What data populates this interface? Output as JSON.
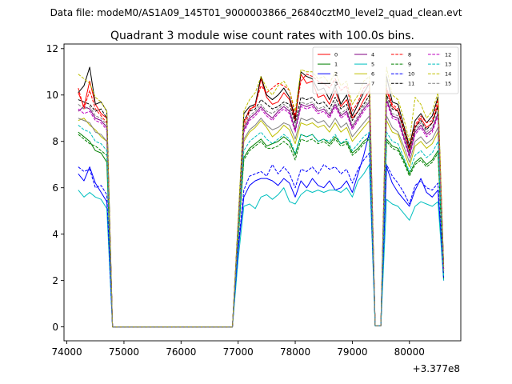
{
  "figure": {
    "suptitle": "Data file: modeM0/AS1A09_145T01_9000003866_26840cztM0_level2_quad_clean.evt",
    "title": "Quadrant 3 module wise count rates with 100.0s bins."
  },
  "chart_data": {
    "type": "line",
    "title": "Quadrant 3 module wise count rates with 100.0s bins.",
    "xlabel": "",
    "ylabel": "",
    "x_offset_label": "+3.377e8",
    "xlim": [
      73950,
      80900
    ],
    "ylim": [
      -0.6,
      12.2
    ],
    "xticks": [
      74000,
      75000,
      76000,
      77000,
      78000,
      79000,
      80000
    ],
    "yticks": [
      0,
      2,
      4,
      6,
      8,
      10,
      12
    ],
    "grid": false,
    "legend_position": "top-right",
    "legend_columns": 4,
    "x": [
      74200,
      74300,
      74400,
      74500,
      74600,
      74700,
      74800,
      76900,
      77000,
      77100,
      77200,
      77300,
      77400,
      77500,
      77600,
      77700,
      77800,
      77900,
      78000,
      78100,
      78200,
      78300,
      78400,
      78500,
      78600,
      78700,
      78800,
      78900,
      79000,
      79100,
      79200,
      79300,
      79400,
      79500,
      79600,
      79700,
      79800,
      79900,
      80000,
      80100,
      80200,
      80300,
      80400,
      80500,
      80600
    ],
    "series": [
      {
        "name": "0",
        "color": "#ff0000",
        "dash": "solid",
        "values": [
          10.1,
          9.5,
          10.6,
          9.6,
          9.2,
          9.0,
          0,
          0,
          4.4,
          8.8,
          9.4,
          9.5,
          10.7,
          9.9,
          9.6,
          9.7,
          10.1,
          9.8,
          8.9,
          10.9,
          10.5,
          10.6,
          9.9,
          10.0,
          9.6,
          10.2,
          9.5,
          9.8,
          9.0,
          9.3,
          9.8,
          10.2,
          0.05,
          0.05,
          10.2,
          9.5,
          9.3,
          8.5,
          7.6,
          8.6,
          9.0,
          8.6,
          8.8,
          9.6,
          2.5
        ]
      },
      {
        "name": "1",
        "color": "#008000",
        "dash": "solid",
        "values": [
          8.4,
          8.2,
          8.0,
          7.6,
          7.5,
          7.1,
          0,
          0,
          3.8,
          7.3,
          7.7,
          7.9,
          8.1,
          7.8,
          7.9,
          8.0,
          8.2,
          8.0,
          7.4,
          8.3,
          8.2,
          8.3,
          8.0,
          8.1,
          7.9,
          8.2,
          7.9,
          8.0,
          7.5,
          7.7,
          8.0,
          8.2,
          0.05,
          0.05,
          8.1,
          7.8,
          7.7,
          7.2,
          6.6,
          7.1,
          7.3,
          7.0,
          7.2,
          7.6,
          2.1
        ]
      },
      {
        "name": "2",
        "color": "#0000ff",
        "dash": "solid",
        "values": [
          6.6,
          6.3,
          6.9,
          6.2,
          5.8,
          5.4,
          0,
          0,
          3.3,
          5.6,
          6.1,
          6.3,
          6.4,
          6.4,
          6.3,
          6.1,
          6.4,
          6.2,
          5.6,
          6.3,
          6.0,
          6.4,
          6.1,
          6.0,
          6.3,
          5.9,
          6.0,
          6.3,
          5.8,
          6.6,
          7.4,
          8.4,
          0.05,
          0.05,
          6.9,
          6.2,
          5.8,
          5.5,
          5.2,
          5.9,
          6.4,
          5.8,
          5.6,
          5.9,
          2.0
        ]
      },
      {
        "name": "3",
        "color": "#000000",
        "dash": "solid",
        "values": [
          10.1,
          10.4,
          11.2,
          9.6,
          9.7,
          9.3,
          0,
          0,
          4.5,
          9.2,
          9.5,
          9.6,
          10.8,
          10.0,
          9.8,
          10.0,
          10.3,
          9.9,
          9.0,
          11.0,
          10.8,
          10.7,
          10.2,
          10.3,
          9.8,
          10.4,
          9.6,
          10.0,
          9.1,
          9.6,
          10.1,
          10.5,
          0.05,
          0.05,
          10.8,
          9.7,
          9.6,
          8.7,
          7.8,
          8.9,
          9.2,
          8.8,
          9.1,
          9.9,
          2.6
        ]
      },
      {
        "name": "4",
        "color": "#800080",
        "dash": "solid",
        "values": [
          9.3,
          9.5,
          9.4,
          9.0,
          8.9,
          8.6,
          0,
          0,
          4.2,
          8.5,
          9.0,
          9.2,
          9.5,
          9.2,
          9.0,
          9.3,
          9.5,
          9.3,
          8.5,
          9.6,
          9.5,
          9.6,
          9.3,
          9.4,
          9.1,
          9.6,
          9.1,
          9.3,
          8.6,
          9.0,
          9.4,
          9.7,
          0.05,
          0.05,
          9.8,
          9.1,
          9.0,
          8.2,
          7.4,
          8.4,
          8.7,
          8.3,
          8.5,
          9.2,
          2.4
        ]
      },
      {
        "name": "5",
        "color": "#00bfbf",
        "dash": "solid",
        "values": [
          5.9,
          5.6,
          5.8,
          5.6,
          5.5,
          5.1,
          0,
          0,
          2.9,
          5.2,
          5.3,
          5.1,
          5.6,
          5.7,
          5.5,
          5.7,
          6.0,
          5.4,
          5.3,
          5.7,
          5.9,
          5.8,
          5.9,
          5.8,
          5.9,
          5.9,
          5.8,
          6.0,
          5.6,
          6.3,
          6.6,
          7.0,
          0.05,
          0.05,
          5.5,
          5.3,
          5.2,
          4.9,
          4.6,
          5.2,
          5.4,
          5.3,
          5.2,
          5.4,
          2.0
        ]
      },
      {
        "name": "6",
        "color": "#bfbf00",
        "dash": "solid",
        "values": [
          8.9,
          9.0,
          8.7,
          8.5,
          8.2,
          8.0,
          0,
          0,
          4.0,
          8.0,
          8.4,
          8.6,
          8.9,
          8.6,
          8.2,
          8.4,
          8.7,
          8.5,
          7.9,
          8.8,
          8.7,
          8.8,
          8.6,
          8.7,
          8.4,
          8.8,
          8.4,
          8.6,
          8.0,
          8.3,
          8.6,
          8.9,
          0.05,
          0.05,
          8.9,
          8.4,
          8.3,
          7.6,
          6.9,
          7.8,
          8.0,
          7.7,
          7.9,
          8.4,
          2.3
        ]
      },
      {
        "name": "7",
        "color": "#808080",
        "dash": "solid",
        "values": [
          9.0,
          8.9,
          8.8,
          8.4,
          8.3,
          8.0,
          0,
          0,
          4.1,
          8.1,
          8.5,
          8.7,
          9.0,
          8.7,
          8.5,
          8.6,
          8.8,
          8.7,
          8.1,
          9.0,
          8.9,
          9.0,
          8.8,
          8.9,
          8.6,
          9.0,
          8.6,
          8.8,
          8.2,
          8.5,
          8.8,
          9.1,
          0.05,
          0.05,
          9.1,
          8.6,
          8.4,
          7.8,
          7.1,
          8.0,
          8.2,
          7.9,
          8.1,
          8.6,
          2.3
        ]
      },
      {
        "name": "8",
        "color": "#ff0000",
        "dash": "dashed",
        "values": [
          10.3,
          9.4,
          10.2,
          9.4,
          9.1,
          8.8,
          0,
          0,
          4.3,
          8.6,
          9.3,
          9.6,
          10.4,
          10.1,
          10.3,
          10.5,
          10.4,
          10.2,
          9.1,
          10.6,
          10.9,
          10.8,
          10.6,
          10.5,
          10.3,
          10.7,
          10.2,
          10.4,
          9.3,
          9.7,
          10.3,
          10.5,
          0.05,
          0.05,
          10.3,
          9.6,
          9.4,
          8.6,
          7.7,
          8.7,
          9.1,
          8.8,
          8.9,
          9.8,
          2.5
        ]
      },
      {
        "name": "9",
        "color": "#008000",
        "dash": "dashed",
        "values": [
          8.3,
          8.1,
          7.9,
          7.8,
          7.6,
          7.4,
          0,
          0,
          3.7,
          7.2,
          7.6,
          7.8,
          8.0,
          7.7,
          7.7,
          7.8,
          8.0,
          7.8,
          7.2,
          8.1,
          8.0,
          8.1,
          7.9,
          8.0,
          7.8,
          8.1,
          7.8,
          7.9,
          7.4,
          7.6,
          7.9,
          8.1,
          0.05,
          0.05,
          8.0,
          7.7,
          7.6,
          7.1,
          6.5,
          7.0,
          7.2,
          6.9,
          7.1,
          7.5,
          2.1
        ]
      },
      {
        "name": "10",
        "color": "#0000ff",
        "dash": "dashed",
        "values": [
          6.9,
          6.7,
          6.8,
          6.0,
          6.1,
          5.7,
          0,
          0,
          3.4,
          5.9,
          6.5,
          6.6,
          6.7,
          6.5,
          7.0,
          6.6,
          6.9,
          6.6,
          6.0,
          6.8,
          6.7,
          6.9,
          6.6,
          7.0,
          6.8,
          6.9,
          6.6,
          6.8,
          6.2,
          6.8,
          7.2,
          7.5,
          0.05,
          0.05,
          7.0,
          6.5,
          6.2,
          5.8,
          5.3,
          6.1,
          6.3,
          6.0,
          5.9,
          6.2,
          2.1
        ]
      },
      {
        "name": "11",
        "color": "#000000",
        "dash": "dashed",
        "values": [
          9.8,
          9.7,
          9.6,
          9.3,
          9.4,
          9.0,
          0,
          0,
          4.4,
          8.9,
          9.3,
          9.4,
          9.8,
          9.6,
          9.4,
          9.5,
          9.7,
          9.6,
          8.8,
          9.9,
          9.8,
          9.9,
          9.6,
          9.7,
          9.4,
          9.9,
          9.4,
          9.6,
          8.9,
          9.3,
          9.6,
          10.0,
          0.05,
          0.05,
          10.0,
          9.4,
          9.3,
          8.5,
          7.6,
          8.6,
          8.9,
          8.5,
          8.8,
          9.5,
          2.5
        ]
      },
      {
        "name": "12",
        "color": "#bf00bf",
        "dash": "dashed",
        "values": [
          9.4,
          9.2,
          9.3,
          8.9,
          8.8,
          8.5,
          0,
          0,
          4.2,
          8.4,
          8.9,
          9.1,
          9.4,
          9.1,
          8.9,
          9.2,
          9.4,
          9.2,
          8.4,
          9.5,
          9.4,
          9.5,
          9.2,
          9.3,
          9.0,
          9.5,
          9.0,
          9.2,
          8.5,
          8.9,
          9.3,
          9.6,
          0.05,
          0.05,
          9.7,
          9.0,
          8.9,
          8.1,
          7.3,
          8.3,
          8.6,
          8.2,
          8.4,
          9.1,
          2.4
        ]
      },
      {
        "name": "13",
        "color": "#00bfbf",
        "dash": "dashed",
        "values": [
          8.7,
          8.5,
          8.4,
          8.0,
          7.9,
          7.6,
          0,
          0,
          3.9,
          7.6,
          8.0,
          8.2,
          8.4,
          8.1,
          7.9,
          8.1,
          8.3,
          8.1,
          7.5,
          8.3,
          8.2,
          8.3,
          8.0,
          8.1,
          8.0,
          8.3,
          7.9,
          8.1,
          7.6,
          7.9,
          8.2,
          8.4,
          0.05,
          0.05,
          8.4,
          8.0,
          7.9,
          7.3,
          6.7,
          7.4,
          7.6,
          7.3,
          7.5,
          8.0,
          2.2
        ]
      },
      {
        "name": "14",
        "color": "#bfbf00",
        "dash": "dashed",
        "values": [
          10.9,
          10.7,
          10.5,
          9.9,
          9.7,
          9.3,
          0,
          0,
          4.6,
          9.3,
          9.8,
          10.1,
          10.8,
          10.3,
          10.0,
          10.4,
          10.6,
          10.2,
          9.3,
          11.1,
          11.0,
          11.0,
          10.7,
          10.8,
          10.5,
          11.0,
          10.4,
          10.6,
          9.6,
          10.0,
          10.6,
          10.8,
          0.05,
          0.05,
          11.2,
          10.0,
          9.8,
          9.0,
          8.0,
          9.9,
          9.6,
          9.0,
          9.3,
          10.1,
          2.6
        ]
      },
      {
        "name": "15",
        "color": "#808080",
        "dash": "dashed",
        "values": [
          9.6,
          9.4,
          9.5,
          9.1,
          9.0,
          8.7,
          0,
          0,
          4.3,
          8.6,
          9.1,
          9.3,
          9.6,
          9.3,
          9.2,
          9.4,
          9.6,
          9.4,
          8.6,
          9.7,
          9.6,
          9.7,
          9.4,
          9.5,
          9.2,
          9.7,
          9.2,
          9.4,
          8.7,
          9.1,
          9.5,
          9.8,
          0.05,
          0.05,
          9.9,
          9.2,
          9.1,
          8.3,
          7.5,
          8.5,
          8.8,
          8.4,
          8.6,
          9.3,
          2.4
        ]
      }
    ]
  }
}
